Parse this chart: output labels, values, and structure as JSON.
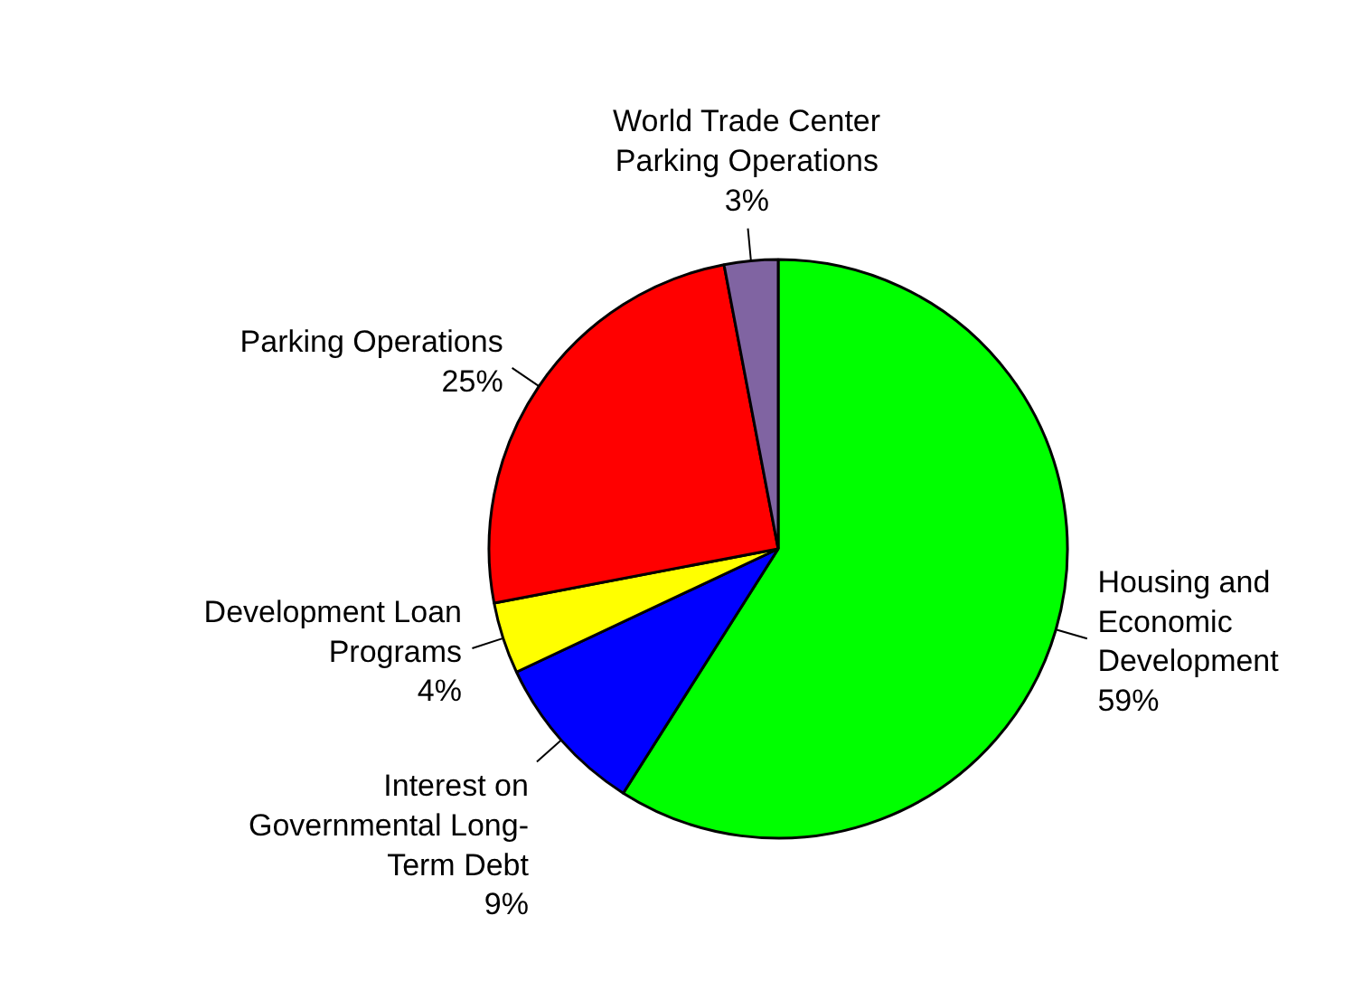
{
  "chart_data": {
    "type": "pie",
    "categories": [
      "Housing and Economic Development",
      "Interest on Governmental Long-Term Debt",
      "Development Loan Programs",
      "Parking Operations",
      "World Trade Center Parking Operations"
    ],
    "values": [
      59,
      9,
      4,
      25,
      3
    ],
    "colors": [
      "#00ff00",
      "#0000ff",
      "#ffff00",
      "#ff0000",
      "#8064a2"
    ],
    "value_labels": [
      "59%",
      "9%",
      "4%",
      "25%",
      "3%"
    ]
  }
}
